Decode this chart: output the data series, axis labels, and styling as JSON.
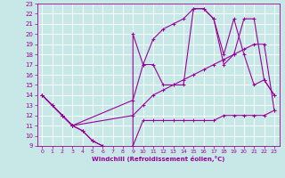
{
  "xlabel": "Windchill (Refroidissement éolien,°C)",
  "xlim": [
    -0.5,
    23.5
  ],
  "ylim": [
    9,
    23
  ],
  "xticks": [
    0,
    1,
    2,
    3,
    4,
    5,
    6,
    7,
    8,
    9,
    10,
    11,
    12,
    13,
    14,
    15,
    16,
    17,
    18,
    19,
    20,
    21,
    22,
    23
  ],
  "yticks": [
    9,
    10,
    11,
    12,
    13,
    14,
    15,
    16,
    17,
    18,
    19,
    20,
    21,
    22,
    23
  ],
  "bg_color": "#c8e8e8",
  "line_color": "#990099",
  "grid_color": "#ffffff",
  "lines": [
    {
      "x": [
        0,
        1,
        2,
        3,
        4,
        5,
        6,
        7,
        8,
        9,
        10,
        11,
        12,
        13,
        14,
        15,
        16,
        17,
        18,
        19,
        20,
        21,
        22,
        23
      ],
      "y": [
        14,
        13,
        12,
        11,
        10.5,
        9.5,
        9,
        8.5,
        8.5,
        9,
        11.5,
        11.5,
        11.5,
        11.5,
        11.5,
        11.5,
        11.5,
        11.5,
        12,
        12,
        12,
        12,
        12,
        12.5
      ]
    },
    {
      "x": [
        0,
        2,
        3,
        9,
        10,
        11,
        12,
        13,
        14,
        15,
        16,
        17,
        18,
        19,
        20,
        21,
        22,
        23
      ],
      "y": [
        14,
        12,
        11,
        12,
        13,
        14,
        14.5,
        15,
        15.5,
        16,
        16.5,
        17,
        17.5,
        18,
        18.5,
        19,
        19,
        12.5
      ]
    },
    {
      "x": [
        0,
        2,
        3,
        9,
        10,
        11,
        12,
        13,
        14,
        15,
        16,
        17,
        18,
        19,
        20,
        21,
        22,
        23
      ],
      "y": [
        14,
        12,
        11,
        13.5,
        17,
        19.5,
        20.5,
        21,
        21.5,
        22.5,
        22.5,
        21.5,
        17,
        18,
        21.5,
        21.5,
        15.5,
        14
      ]
    },
    {
      "x": [
        0,
        1,
        2,
        3,
        4,
        5,
        6,
        7,
        8,
        9,
        9,
        10,
        11,
        12,
        13,
        14,
        15,
        16,
        17,
        18,
        19,
        20,
        21,
        22,
        23
      ],
      "y": [
        14,
        13,
        12,
        11,
        10.5,
        9.5,
        9,
        8.5,
        8.5,
        9,
        20,
        17,
        17,
        15,
        15,
        15,
        22.5,
        22.5,
        21.5,
        18,
        21.5,
        18,
        15,
        15.5,
        14
      ]
    }
  ]
}
